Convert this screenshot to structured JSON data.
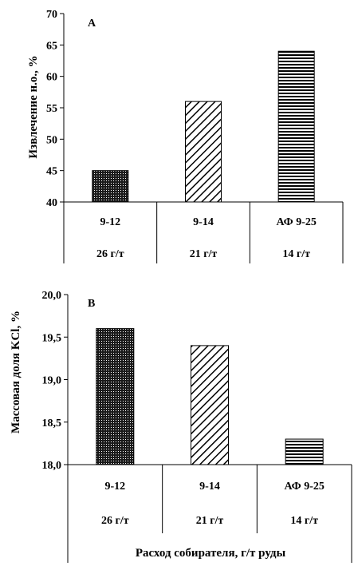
{
  "chart_data": [
    {
      "type": "bar",
      "panel_label": "A",
      "ylabel": "Извлечение н.о., %",
      "ylim": [
        40,
        70
      ],
      "yticks": [
        "40",
        "45",
        "50",
        "55",
        "60",
        "65",
        "70"
      ],
      "categories": [
        "9-12",
        "9-14",
        "АФ 9-25"
      ],
      "dosages": [
        "26 г/т",
        "21 г/т",
        "14 г/т"
      ],
      "values": [
        45,
        56,
        64
      ],
      "patterns": [
        "dots",
        "diagonal",
        "horizontal"
      ]
    },
    {
      "type": "bar",
      "panel_label": "В",
      "ylabel": "Массовая доля KCl, %",
      "ylim": [
        18.0,
        20.0
      ],
      "yticks": [
        "18,0",
        "18,5",
        "19,0",
        "19,5",
        "20,0"
      ],
      "categories": [
        "9-12",
        "9-14",
        "АФ 9-25"
      ],
      "dosages": [
        "26 г/т",
        "21 г/т",
        "14 г/т"
      ],
      "values": [
        19.6,
        19.4,
        18.3
      ],
      "patterns": [
        "dots",
        "diagonal",
        "horizontal"
      ],
      "xlabel": "Расход собирателя, г/т руды"
    }
  ]
}
